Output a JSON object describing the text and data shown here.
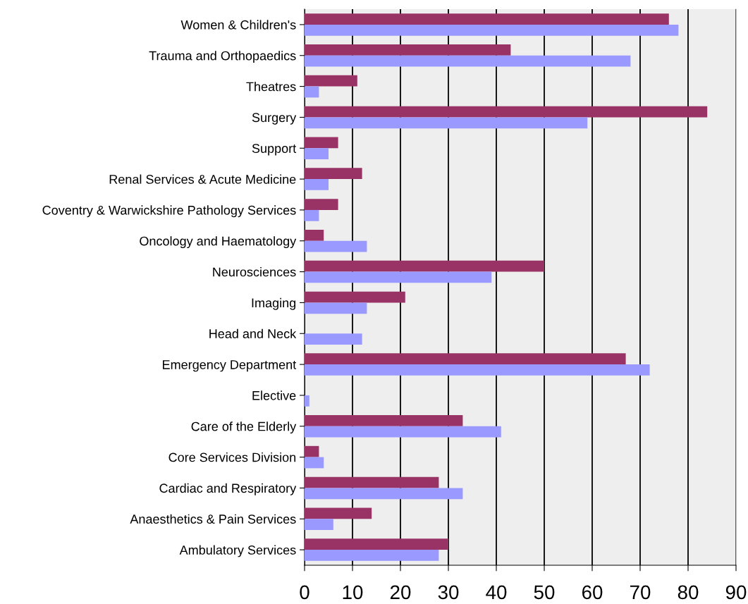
{
  "chart_data": {
    "type": "bar",
    "orientation": "horizontal",
    "categories": [
      "Women & Children's",
      "Trauma and Orthopaedics",
      "Theatres",
      "Surgery",
      "Support",
      "Renal Services & Acute Medicine",
      "Coventry & Warwickshire Pathology Services",
      "Oncology and Haematology",
      "Neurosciences",
      "Imaging",
      "Head and Neck",
      "Emergency Department",
      "Elective",
      "Care of the Elderly",
      "Core Services Division",
      "Cardiac and Respiratory",
      "Anaesthetics & Pain Services",
      "Ambulatory Services"
    ],
    "series": [
      {
        "color": "#993366",
        "values": [
          76,
          43,
          11,
          84,
          7,
          12,
          7,
          4,
          50,
          21,
          0,
          67,
          0,
          33,
          3,
          28,
          14,
          30
        ]
      },
      {
        "color": "#9999ff",
        "values": [
          78,
          68,
          3,
          59,
          5,
          5,
          3,
          13,
          39,
          13,
          12,
          72,
          1,
          41,
          4,
          33,
          6,
          28
        ]
      }
    ],
    "xlim": [
      0,
      90
    ],
    "xticks": [
      0,
      10,
      20,
      30,
      40,
      50,
      60,
      70,
      80,
      90
    ],
    "grid": "x"
  }
}
